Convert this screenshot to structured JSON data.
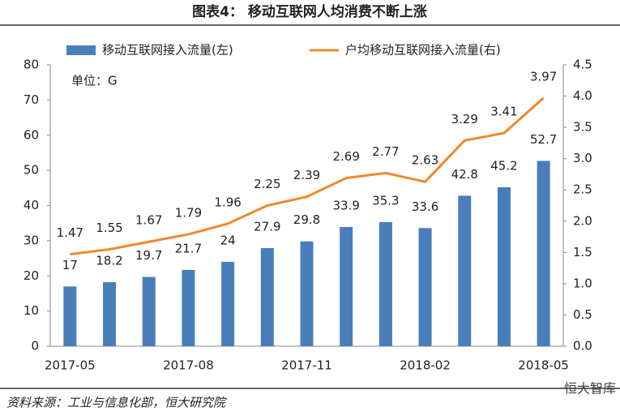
{
  "header": {
    "title": "图表4：   移动互联网人均消费不断上涨"
  },
  "chart_data": {
    "type": "bar-line",
    "unit_note": "单位：G",
    "categories": [
      "2017-05",
      null,
      null,
      "2017-08",
      null,
      null,
      "2017-11",
      null,
      null,
      "2018-02",
      null,
      null,
      "2018-05"
    ],
    "series": [
      {
        "name": "移动互联网接入流量(左)",
        "type": "bar",
        "color": "#4a7ebb",
        "values": [
          17,
          18.2,
          19.7,
          21.7,
          24,
          27.9,
          29.8,
          33.9,
          35.3,
          33.6,
          42.8,
          45.2,
          52.7
        ]
      },
      {
        "name": "户均移动互联网接入流量(右)",
        "type": "line",
        "axis": "y2",
        "color": "#f0892b",
        "values": [
          1.47,
          1.55,
          1.67,
          1.79,
          1.96,
          2.25,
          2.39,
          2.69,
          2.77,
          2.63,
          3.29,
          3.41,
          3.97
        ]
      }
    ],
    "ylim": [
      0,
      80
    ],
    "yticks": [
      0,
      10,
      20,
      30,
      40,
      50,
      60,
      70,
      80
    ],
    "y2lim": [
      0,
      4.5
    ],
    "y2ticks": [
      {
        "value": 0,
        "label": "0.0"
      },
      0.5,
      {
        "value": 1,
        "label": "1.0"
      },
      1.5,
      {
        "value": 2,
        "label": "2.0"
      },
      2.5,
      {
        "value": 3,
        "label": "3.0"
      },
      3.5,
      {
        "value": 4,
        "label": "4.0"
      },
      4.5
    ],
    "grid": false
  },
  "footer": {
    "source": "资料来源：工业与信息化部，恒大研究院",
    "watermark": "恒大智库"
  }
}
